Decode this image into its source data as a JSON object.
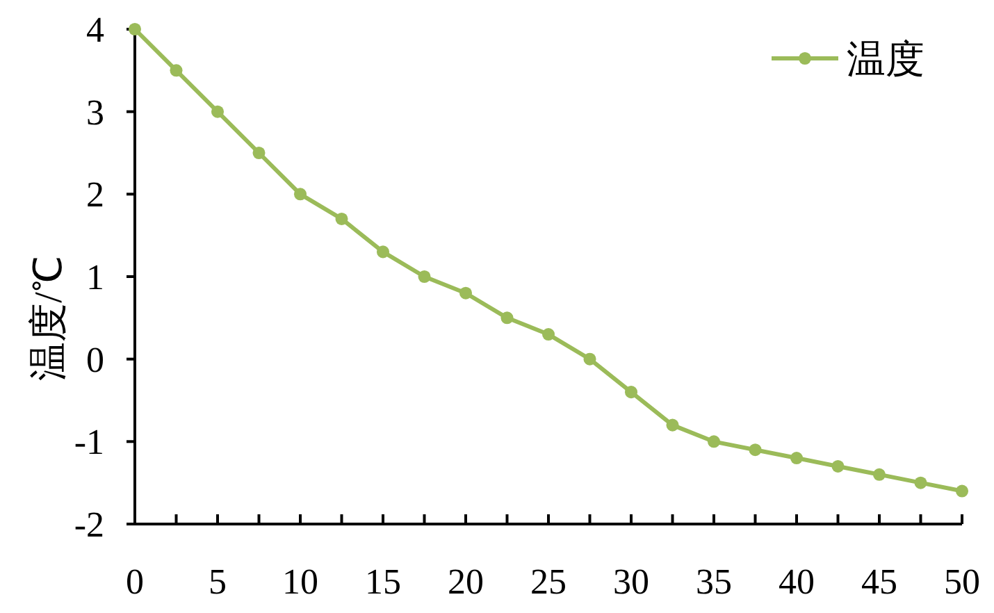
{
  "chart_data": {
    "type": "line",
    "ylabel": "温度/℃",
    "legend": "top right",
    "marker": "circle",
    "grid": false,
    "x": [
      0,
      2.5,
      5,
      7.5,
      10,
      12.5,
      15,
      17.5,
      20,
      22.5,
      25,
      27.5,
      30,
      32.5,
      35,
      37.5,
      40,
      42.5,
      45,
      47.5,
      50
    ],
    "series": [
      {
        "name": "温度",
        "color": "#9bbb59",
        "values": [
          4,
          3.5,
          3.0,
          2.5,
          2.0,
          1.7,
          1.3,
          1.0,
          0.8,
          0.5,
          0.3,
          0.0,
          -0.4,
          -0.8,
          -1.0,
          -1.1,
          -1.2,
          -1.3,
          -1.4,
          -1.5,
          -1.6
        ]
      }
    ],
    "xlim": [
      0,
      50
    ],
    "xticks": [
      0,
      {
        "value": 2.5,
        "label": null
      },
      5,
      {
        "value": 7.5,
        "label": null
      },
      10,
      {
        "value": 12.5,
        "label": null
      },
      15,
      {
        "value": 17.5,
        "label": null
      },
      20,
      {
        "value": 22.5,
        "label": null
      },
      25,
      {
        "value": 27.5,
        "label": null
      },
      30,
      {
        "value": 32.5,
        "label": null
      },
      35,
      {
        "value": 37.5,
        "label": null
      },
      40,
      {
        "value": 42.5,
        "label": null
      },
      45,
      {
        "value": 47.5,
        "label": null
      },
      50
    ],
    "ylim": [
      -2,
      4
    ],
    "yticks": [
      -2,
      -1,
      0,
      1,
      2,
      3,
      4
    ]
  }
}
